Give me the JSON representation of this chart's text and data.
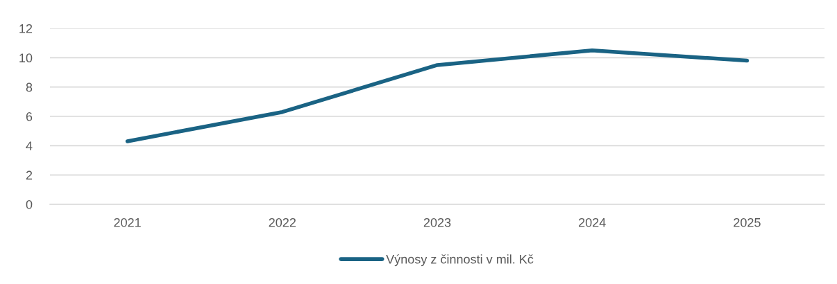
{
  "chart_data": {
    "type": "line",
    "categories": [
      "2021",
      "2022",
      "2023",
      "2024",
      "2025"
    ],
    "series": [
      {
        "name": "Výnosy z činnosti v mil. Kč",
        "color": "#1a6384",
        "values": [
          4.3,
          6.3,
          9.5,
          10.5,
          9.8
        ]
      }
    ],
    "ylim": [
      0,
      12
    ],
    "yticks": [
      0,
      2,
      4,
      6,
      8,
      10,
      12
    ],
    "grid": "y",
    "legend": "bottom",
    "marker": "none",
    "line_style": "solid"
  }
}
